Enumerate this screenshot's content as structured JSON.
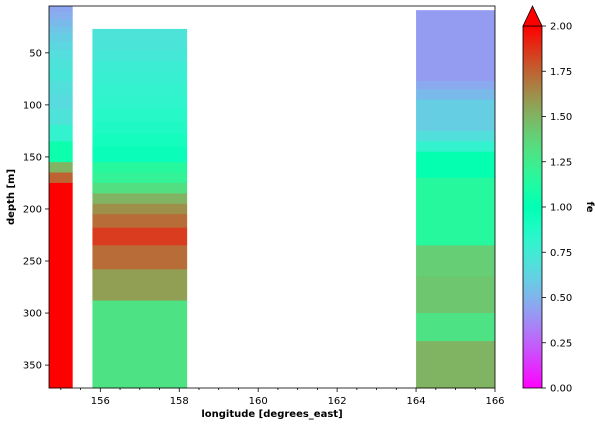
{
  "chart_data": {
    "type": "heatmap",
    "title": "",
    "xlabel": "longitude [degrees_east]",
    "ylabel": "depth [m]",
    "xlim": [
      154.7,
      166
    ],
    "ylim": [
      372,
      5
    ],
    "y_inverted": true,
    "xticks": [
      156,
      158,
      160,
      162,
      164,
      166
    ],
    "yticks": [
      50,
      100,
      150,
      200,
      250,
      300,
      350
    ],
    "grid": false,
    "colorbar": {
      "label": "fe",
      "colormap": "rainbow",
      "range": [
        0,
        2
      ],
      "extend": "max",
      "ticks": [
        "0.00",
        "0.25",
        "0.50",
        "0.75",
        "1.00",
        "1.25",
        "1.50",
        "1.75",
        "2.00"
      ]
    },
    "columns": [
      {
        "lon_range": [
          154.7,
          155.3
        ],
        "cells": [
          {
            "depth": [
              5,
              11
            ],
            "value": 0.45
          },
          {
            "depth": [
              11,
              18
            ],
            "value": 0.48
          },
          {
            "depth": [
              18,
              25
            ],
            "value": 0.52
          },
          {
            "depth": [
              25,
              31
            ],
            "value": 0.56
          },
          {
            "depth": [
              31,
              39
            ],
            "value": 0.6
          },
          {
            "depth": [
              39,
              47
            ],
            "value": 0.64
          },
          {
            "depth": [
              47,
              56
            ],
            "value": 0.67
          },
          {
            "depth": [
              56,
              66
            ],
            "value": 0.7
          },
          {
            "depth": [
              66,
              77
            ],
            "value": 0.72
          },
          {
            "depth": [
              77,
              90
            ],
            "value": 0.68
          },
          {
            "depth": [
              90,
              104
            ],
            "value": 0.66
          },
          {
            "depth": [
              104,
              119
            ],
            "value": 0.7
          },
          {
            "depth": [
              119,
              135
            ],
            "value": 0.8
          },
          {
            "depth": [
              135,
              155
            ],
            "value": 1.05
          },
          {
            "depth": [
              155,
              165
            ],
            "value": 1.5
          },
          {
            "depth": [
              165,
              175
            ],
            "value": 1.75
          },
          {
            "depth": [
              175,
              372
            ],
            "value": 2.0
          }
        ]
      },
      {
        "lon_range": [
          155.8,
          158.2
        ],
        "cells": [
          {
            "depth": [
              27,
              38
            ],
            "value": 0.7
          },
          {
            "depth": [
              38,
              48
            ],
            "value": 0.71
          },
          {
            "depth": [
              48,
              58
            ],
            "value": 0.73
          },
          {
            "depth": [
              58,
              68
            ],
            "value": 0.76
          },
          {
            "depth": [
              68,
              80
            ],
            "value": 0.78
          },
          {
            "depth": [
              80,
              92
            ],
            "value": 0.8
          },
          {
            "depth": [
              92,
              104
            ],
            "value": 0.82
          },
          {
            "depth": [
              104,
              116
            ],
            "value": 0.85
          },
          {
            "depth": [
              116,
              128
            ],
            "value": 0.88
          },
          {
            "depth": [
              128,
              140
            ],
            "value": 0.92
          },
          {
            "depth": [
              140,
              155
            ],
            "value": 0.96
          },
          {
            "depth": [
              155,
              165
            ],
            "value": 1.15
          },
          {
            "depth": [
              165,
              175
            ],
            "value": 1.2
          },
          {
            "depth": [
              175,
              185
            ],
            "value": 1.32
          },
          {
            "depth": [
              185,
              195
            ],
            "value": 1.5
          },
          {
            "depth": [
              195,
              205
            ],
            "value": 1.62
          },
          {
            "depth": [
              205,
              218
            ],
            "value": 1.72
          },
          {
            "depth": [
              218,
              235
            ],
            "value": 1.85
          },
          {
            "depth": [
              235,
              258
            ],
            "value": 1.72
          },
          {
            "depth": [
              258,
              288
            ],
            "value": 1.57
          },
          {
            "depth": [
              288,
              372
            ],
            "value": 1.3
          }
        ]
      },
      {
        "lon_range": [
          164.0,
          166.0
        ],
        "cells": [
          {
            "depth": [
              9,
              77
            ],
            "value": 0.42
          },
          {
            "depth": [
              77,
              85
            ],
            "value": 0.46
          },
          {
            "depth": [
              85,
              95
            ],
            "value": 0.52
          },
          {
            "depth": [
              95,
              125
            ],
            "value": 0.6
          },
          {
            "depth": [
              125,
              135
            ],
            "value": 0.68
          },
          {
            "depth": [
              135,
              145
            ],
            "value": 0.8
          },
          {
            "depth": [
              145,
              170
            ],
            "value": 1.02
          },
          {
            "depth": [
              170,
              235
            ],
            "value": 1.15
          },
          {
            "depth": [
              235,
              265
            ],
            "value": 1.4
          },
          {
            "depth": [
              265,
              300
            ],
            "value": 1.43
          },
          {
            "depth": [
              300,
              327
            ],
            "value": 1.3
          },
          {
            "depth": [
              327,
              372
            ],
            "value": 1.5
          }
        ]
      }
    ]
  }
}
